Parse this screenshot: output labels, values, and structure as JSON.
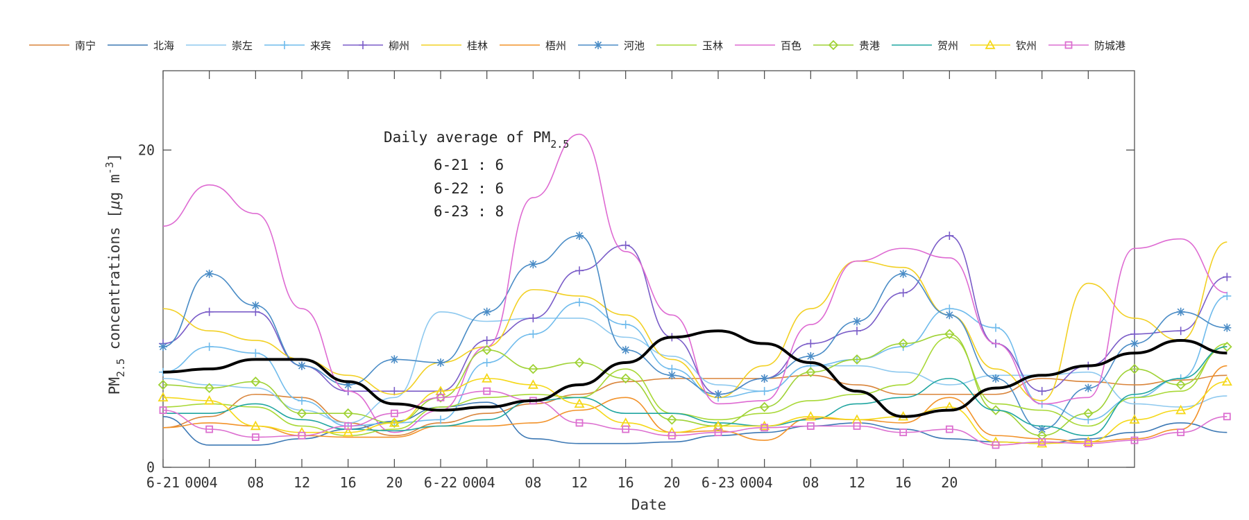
{
  "chart_data": {
    "type": "line",
    "xlabel": "Date",
    "ylabel_main": "PM",
    "ylabel_sub": "2.5",
    "ylabel_rest": " concentrations [",
    "ylabel_mu": "μ",
    "ylabel_unit": "g m",
    "ylabel_sup": "-3",
    "ylabel_close": "]",
    "ylim": [
      0,
      25
    ],
    "yticks": [
      0,
      20
    ],
    "ytick_labels": [
      "0",
      "20"
    ],
    "x_hours": [
      0,
      4,
      8,
      12,
      16,
      20,
      24,
      28,
      32,
      36,
      40,
      44,
      48,
      52,
      56,
      60,
      64,
      68,
      72,
      76,
      80,
      84,
      88,
      92
    ],
    "x_tick_labels": [
      "6-21",
      "00",
      "04",
      "08",
      "12",
      "16",
      "20",
      "6-22",
      "00",
      "04",
      "08",
      "12",
      "16",
      "20",
      "6-23",
      "00",
      "04",
      "08",
      "12",
      "16",
      "20"
    ],
    "grid": false,
    "legend_position": "top",
    "annotation": {
      "title": "Daily average of PM",
      "title_sub": "2.5",
      "lines": [
        "6-21 : 6",
        "6-22 : 6",
        "6-23 : 8"
      ]
    },
    "series": [
      {
        "name": "南宁",
        "color": "#d9843a",
        "marker": "none",
        "values": [
          2.5,
          3.2,
          4.6,
          4.4,
          2.8,
          2.0,
          2.8,
          3.4,
          4.0,
          4.6,
          5.4,
          5.6,
          5.6,
          5.6,
          5.8,
          5.2,
          4.6,
          4.6,
          4.6,
          5.6,
          5.4,
          5.2,
          5.5,
          5.8
        ]
      },
      {
        "name": "北海",
        "color": "#3c78b4",
        "marker": "none",
        "values": [
          3.2,
          1.4,
          1.4,
          1.8,
          2.4,
          2.9,
          3.8,
          4.1,
          1.8,
          1.5,
          1.5,
          1.6,
          2.0,
          2.2,
          2.6,
          2.8,
          2.4,
          1.8,
          1.6,
          1.5,
          1.8,
          2.2,
          2.8,
          2.2
        ]
      },
      {
        "name": "崇左",
        "color": "#8ec9ef",
        "marker": "none",
        "values": [
          5.6,
          5.2,
          5.0,
          3.6,
          2.8,
          4.4,
          9.8,
          9.2,
          9.4,
          9.4,
          8.2,
          7.0,
          5.2,
          4.8,
          6.4,
          6.4,
          6.0,
          5.2,
          5.8,
          5.8,
          6.0,
          4.0,
          3.8,
          4.5
        ]
      },
      {
        "name": "来宾",
        "color": "#6fbbec",
        "marker": "plus",
        "values": [
          6.0,
          7.6,
          7.2,
          4.2,
          2.6,
          2.8,
          3.0,
          6.6,
          8.4,
          10.4,
          9.0,
          6.2,
          4.4,
          4.8,
          6.4,
          6.8,
          7.6,
          10.0,
          8.8,
          4.0,
          3.0,
          4.4,
          5.6,
          10.8
        ]
      },
      {
        "name": "柳州",
        "color": "#7a5cc8",
        "marker": "plus",
        "values": [
          7.8,
          9.8,
          9.8,
          6.4,
          4.8,
          4.8,
          4.8,
          8.0,
          9.4,
          12.4,
          14.0,
          8.2,
          4.6,
          5.6,
          7.8,
          8.6,
          11.0,
          14.6,
          7.8,
          4.8,
          6.4,
          8.4,
          8.6,
          12.0
        ]
      },
      {
        "name": "桂林",
        "color": "#f2d023",
        "marker": "none",
        "values": [
          10.0,
          8.6,
          8.0,
          6.8,
          5.8,
          4.6,
          6.6,
          7.6,
          11.2,
          10.8,
          9.6,
          6.8,
          4.4,
          6.4,
          10.0,
          13.0,
          12.6,
          9.6,
          6.2,
          4.2,
          11.6,
          9.4,
          8.0,
          14.2
        ]
      },
      {
        "name": "梧州",
        "color": "#f29229",
        "marker": "none",
        "values": [
          2.5,
          2.8,
          2.6,
          2.0,
          1.9,
          1.9,
          2.6,
          2.6,
          2.8,
          3.6,
          4.4,
          2.2,
          2.3,
          1.7,
          3.1,
          3.0,
          2.8,
          4.4,
          2.0,
          1.8,
          1.6,
          1.8,
          2.4,
          6.4
        ]
      },
      {
        "name": "河池",
        "color": "#4a8cc6",
        "marker": "star",
        "values": [
          7.6,
          12.2,
          10.2,
          6.4,
          5.2,
          6.8,
          6.6,
          9.8,
          12.8,
          14.6,
          7.4,
          5.8,
          4.6,
          5.6,
          7.0,
          9.2,
          12.2,
          9.6,
          5.6,
          2.4,
          5.0,
          7.8,
          9.8,
          8.8
        ]
      },
      {
        "name": "玉林",
        "color": "#a8d836",
        "marker": "none",
        "values": [
          3.8,
          4.0,
          3.8,
          2.6,
          2.0,
          2.4,
          3.8,
          4.4,
          4.6,
          4.4,
          6.2,
          3.4,
          3.0,
          3.4,
          4.2,
          4.6,
          5.2,
          8.2,
          4.0,
          3.6,
          2.6,
          4.4,
          4.8,
          7.8
        ]
      },
      {
        "name": "百色",
        "color": "#de6ad2",
        "marker": "none",
        "values": [
          15.2,
          17.8,
          16.0,
          10.0,
          4.8,
          2.2,
          3.6,
          7.6,
          17.0,
          21.0,
          13.6,
          9.6,
          4.0,
          4.2,
          9.0,
          13.0,
          13.8,
          13.2,
          7.8,
          4.0,
          4.4,
          13.8,
          14.4,
          11.0
        ]
      },
      {
        "name": "贵港",
        "color": "#9fd235",
        "marker": "diamond",
        "values": [
          5.2,
          5.0,
          5.4,
          3.4,
          3.4,
          2.8,
          4.4,
          7.4,
          6.2,
          6.6,
          5.6,
          3.0,
          2.6,
          3.8,
          6.0,
          6.8,
          7.8,
          8.4,
          3.6,
          2.0,
          3.4,
          6.2,
          5.2,
          7.6
        ]
      },
      {
        "name": "贺州",
        "color": "#1fa5a0",
        "marker": "none",
        "values": [
          3.4,
          3.4,
          4.0,
          3.0,
          2.4,
          2.3,
          2.6,
          3.0,
          4.2,
          4.4,
          3.4,
          3.4,
          2.8,
          2.6,
          3.0,
          4.0,
          4.4,
          5.6,
          3.6,
          2.6,
          2.0,
          4.6,
          5.6,
          7.6
        ]
      },
      {
        "name": "钦州",
        "color": "#f5d818",
        "marker": "triangle",
        "values": [
          4.4,
          4.2,
          2.6,
          2.2,
          2.2,
          2.8,
          4.8,
          5.6,
          5.2,
          4.0,
          2.8,
          2.2,
          2.6,
          2.6,
          3.2,
          3.0,
          3.2,
          3.8,
          1.6,
          1.5,
          1.6,
          3.0,
          3.6,
          5.4
        ]
      },
      {
        "name": "防城港",
        "color": "#dc6fd0",
        "marker": "square",
        "values": [
          3.6,
          2.4,
          1.9,
          2.0,
          2.6,
          3.4,
          4.4,
          4.8,
          4.2,
          2.8,
          2.4,
          2.0,
          2.2,
          2.5,
          2.6,
          2.6,
          2.2,
          2.4,
          1.4,
          1.6,
          1.5,
          1.7,
          2.2,
          3.2
        ]
      },
      {
        "name": "",
        "color": "#000000",
        "marker": "none",
        "bold": true,
        "values": [
          6.0,
          6.2,
          6.8,
          6.8,
          5.4,
          4.0,
          3.6,
          3.8,
          4.2,
          5.2,
          6.6,
          8.2,
          8.6,
          7.8,
          6.6,
          4.8,
          3.2,
          3.6,
          5.0,
          5.8,
          6.4,
          7.2,
          8.0,
          7.2
        ]
      }
    ]
  }
}
